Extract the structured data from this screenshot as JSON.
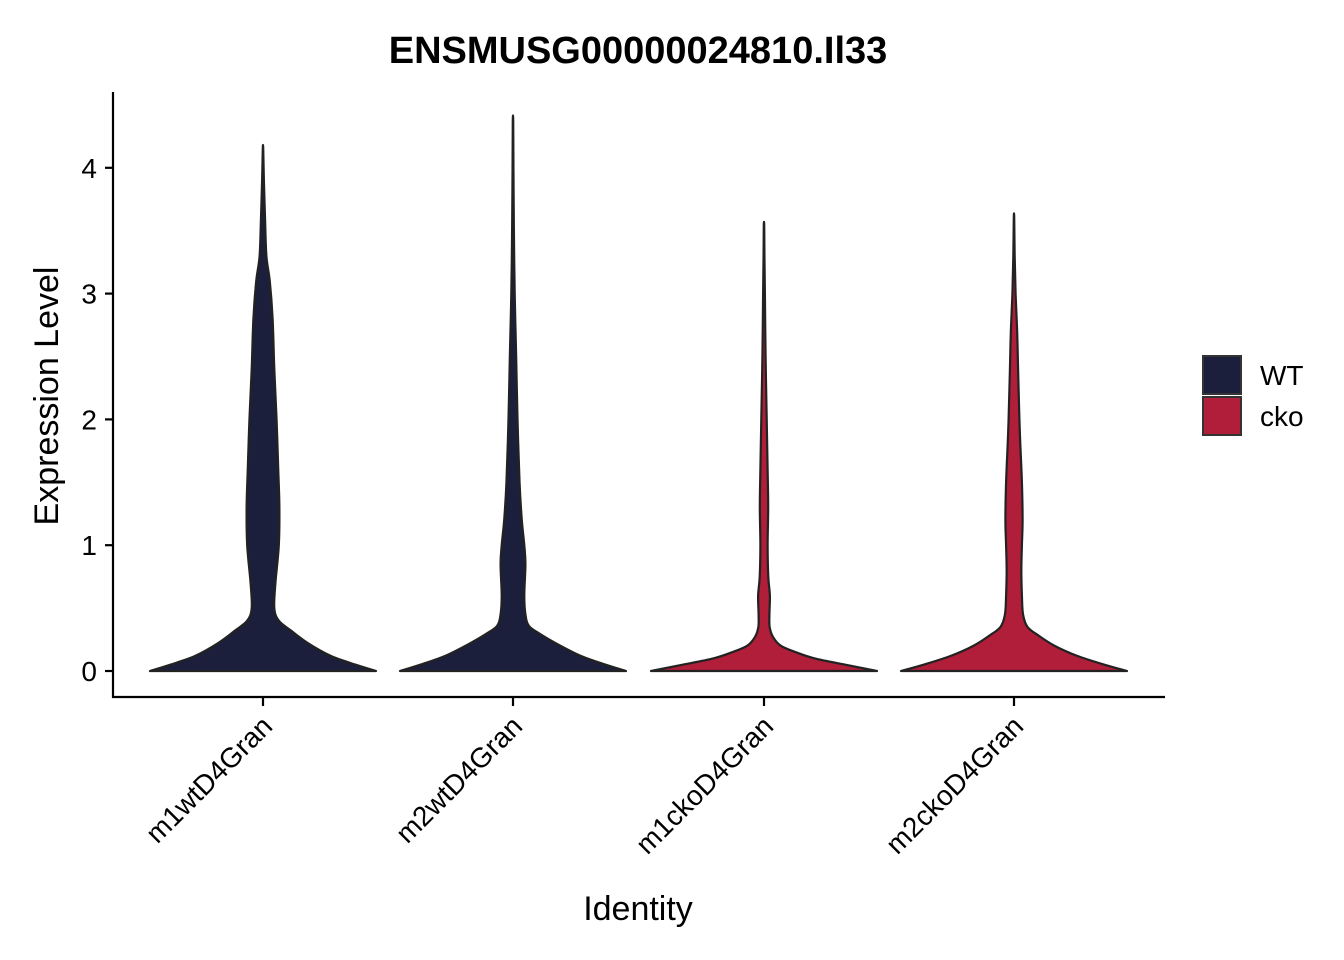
{
  "chart_data": {
    "type": "violin",
    "title": "ENSMUSG00000024810.Il33",
    "xlabel": "Identity",
    "ylabel": "Expression Level",
    "ylim": [
      0,
      4.4
    ],
    "yticks": [
      0,
      1,
      2,
      3,
      4
    ],
    "categories": [
      "m1wtD4Gran",
      "m2wtD4Gran",
      "m1ckoD4Gran",
      "m2ckoD4Gran"
    ],
    "groups": [
      "WT",
      "WT",
      "cko",
      "cko"
    ],
    "legend": {
      "position": "right",
      "items": [
        {
          "label": "WT",
          "color": "#1b1f3b"
        },
        {
          "label": "cko",
          "color": "#b01e39"
        }
      ]
    },
    "violins": [
      {
        "category": "m1wtD4Gran",
        "group": "WT",
        "max": 4.15,
        "density": [
          [
            0,
            1.0
          ],
          [
            0.05,
            0.82
          ],
          [
            0.12,
            0.6
          ],
          [
            0.22,
            0.4
          ],
          [
            0.32,
            0.25
          ],
          [
            0.4,
            0.14
          ],
          [
            0.5,
            0.1
          ],
          [
            0.7,
            0.11
          ],
          [
            1.0,
            0.14
          ],
          [
            1.3,
            0.145
          ],
          [
            1.6,
            0.135
          ],
          [
            2.0,
            0.12
          ],
          [
            2.4,
            0.1
          ],
          [
            2.8,
            0.085
          ],
          [
            3.1,
            0.06
          ],
          [
            3.3,
            0.03
          ],
          [
            3.6,
            0.018
          ],
          [
            3.9,
            0.008
          ],
          [
            4.15,
            0.002
          ]
        ]
      },
      {
        "category": "m2wtD4Gran",
        "group": "WT",
        "max": 4.37,
        "density": [
          [
            0,
            1.0
          ],
          [
            0.05,
            0.82
          ],
          [
            0.12,
            0.6
          ],
          [
            0.22,
            0.38
          ],
          [
            0.3,
            0.23
          ],
          [
            0.36,
            0.14
          ],
          [
            0.45,
            0.11
          ],
          [
            0.6,
            0.1
          ],
          [
            0.85,
            0.11
          ],
          [
            1.0,
            0.1
          ],
          [
            1.2,
            0.078
          ],
          [
            1.5,
            0.058
          ],
          [
            2.0,
            0.04
          ],
          [
            2.5,
            0.028
          ],
          [
            3.0,
            0.015
          ],
          [
            3.5,
            0.008
          ],
          [
            4.0,
            0.004
          ],
          [
            4.37,
            0.002
          ]
        ]
      },
      {
        "category": "m1ckoD4Gran",
        "group": "cko",
        "max": 3.54,
        "density": [
          [
            0,
            1.0
          ],
          [
            0.05,
            0.72
          ],
          [
            0.1,
            0.45
          ],
          [
            0.15,
            0.28
          ],
          [
            0.2,
            0.15
          ],
          [
            0.27,
            0.08
          ],
          [
            0.35,
            0.05
          ],
          [
            0.45,
            0.048
          ],
          [
            0.6,
            0.052
          ],
          [
            0.75,
            0.038
          ],
          [
            1.0,
            0.032
          ],
          [
            1.3,
            0.037
          ],
          [
            1.6,
            0.032
          ],
          [
            2.0,
            0.024
          ],
          [
            2.5,
            0.014
          ],
          [
            3.0,
            0.008
          ],
          [
            3.3,
            0.004
          ],
          [
            3.54,
            0.002
          ]
        ]
      },
      {
        "category": "m2ckoD4Gran",
        "group": "cko",
        "max": 3.6,
        "density": [
          [
            0,
            1.0
          ],
          [
            0.05,
            0.8
          ],
          [
            0.12,
            0.56
          ],
          [
            0.2,
            0.36
          ],
          [
            0.28,
            0.22
          ],
          [
            0.35,
            0.12
          ],
          [
            0.45,
            0.08
          ],
          [
            0.6,
            0.07
          ],
          [
            0.8,
            0.065
          ],
          [
            1.0,
            0.07
          ],
          [
            1.2,
            0.076
          ],
          [
            1.5,
            0.07
          ],
          [
            1.8,
            0.056
          ],
          [
            2.0,
            0.048
          ],
          [
            2.4,
            0.036
          ],
          [
            2.7,
            0.028
          ],
          [
            3.0,
            0.014
          ],
          [
            3.3,
            0.006
          ],
          [
            3.6,
            0.002
          ]
        ]
      }
    ]
  }
}
